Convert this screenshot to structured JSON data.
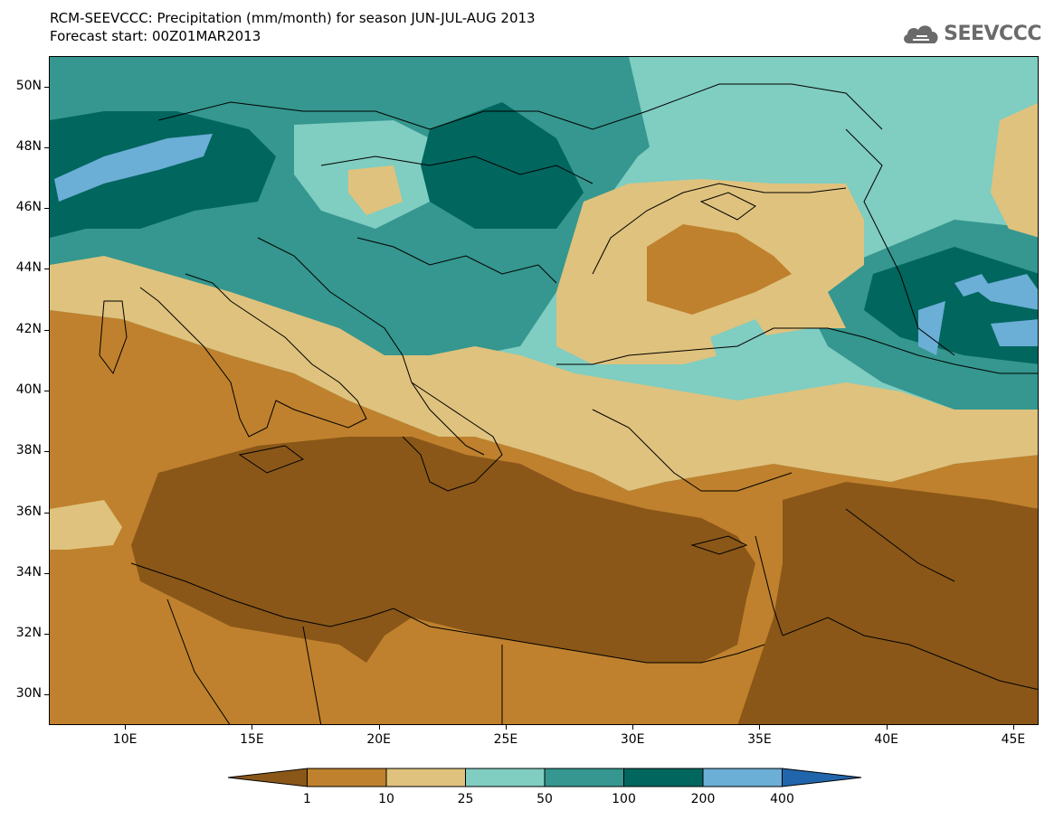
{
  "title": {
    "line1": "RCM-SEEVCCC: Precipitation (mm/month) for season JUN-JUL-AUG 2013",
    "line2": "Forecast start: 00Z01MAR2013"
  },
  "logo": {
    "text": "SEEVCCC",
    "icon": "cloud-icon",
    "color": "#6a6a6a"
  },
  "map": {
    "lat_range": [
      29,
      51
    ],
    "lon_range": [
      7,
      46
    ],
    "lat_labels": [
      "30N",
      "32N",
      "34N",
      "36N",
      "38N",
      "40N",
      "42N",
      "44N",
      "46N",
      "48N",
      "50N"
    ],
    "lon_labels": [
      "10E",
      "15E",
      "20E",
      "25E",
      "30E",
      "35E",
      "40E",
      "45E"
    ]
  },
  "colorbar": {
    "colors": [
      "#8a5718",
      "#bf812d",
      "#dfc27d",
      "#80cdc1",
      "#35978f",
      "#01665e",
      "#6baed6",
      "#2166ac"
    ],
    "labels": [
      "1",
      "10",
      "25",
      "50",
      "100",
      "200",
      "400"
    ]
  }
}
